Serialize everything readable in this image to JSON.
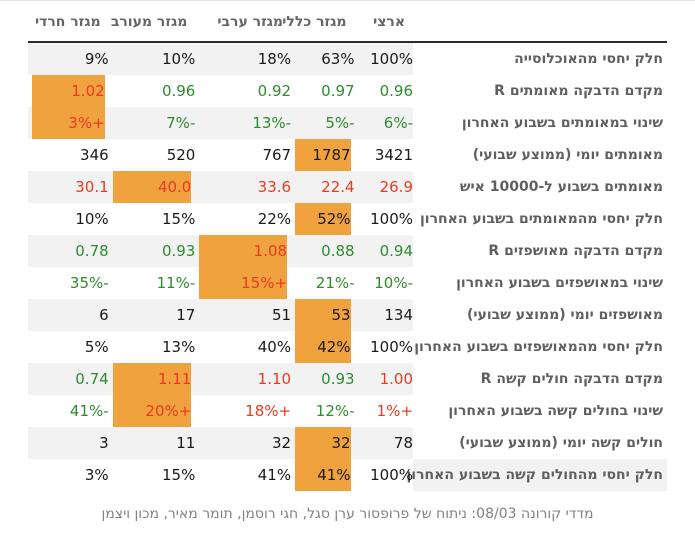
{
  "colors": {
    "highlight": "#f0a23e",
    "positive_green": "#2e8b2e",
    "negative_red": "#e83c22",
    "neutral": "#1a1a1a",
    "stripe": "#f2f2f2",
    "header_text": "#666666",
    "label_text": "#5f5f5f",
    "footer_text": "#828282"
  },
  "chart_data": {
    "type": "table",
    "direction": "rtl",
    "legend_note": "c: dark=neutral black, green=improving, red=worsening; hl: orange highlighted cell",
    "columns": [
      "ארצי",
      "מגזר כללי",
      "מגזר ערבי",
      "מגזר מעורב",
      "מגזר חרדי"
    ],
    "rows": [
      {
        "label": "חלק יחסי מהאוכלוסייה",
        "cells": [
          {
            "t": "100%",
            "c": "dark",
            "hl": false
          },
          {
            "t": "63%",
            "c": "dark",
            "hl": false
          },
          {
            "t": "18%",
            "c": "dark",
            "hl": false
          },
          {
            "t": "10%",
            "c": "dark",
            "hl": false
          },
          {
            "t": "9%",
            "c": "dark",
            "hl": false
          }
        ]
      },
      {
        "label": "מקדם הדבקה מאומתים R",
        "cells": [
          {
            "t": "0.96",
            "c": "green",
            "hl": false
          },
          {
            "t": "0.97",
            "c": "green",
            "hl": false
          },
          {
            "t": "0.92",
            "c": "green",
            "hl": false
          },
          {
            "t": "0.96",
            "c": "green",
            "hl": false
          },
          {
            "t": "1.02",
            "c": "red",
            "hl": true
          }
        ]
      },
      {
        "label": "שינוי במאומתים בשבוע האחרון",
        "cells": [
          {
            "t": "-6%",
            "c": "green",
            "hl": false
          },
          {
            "t": "-5%",
            "c": "green",
            "hl": false
          },
          {
            "t": "-13%",
            "c": "green",
            "hl": false
          },
          {
            "t": "-7%",
            "c": "green",
            "hl": false
          },
          {
            "t": "+3%",
            "c": "red",
            "hl": true
          }
        ]
      },
      {
        "label": "מאומתים יומי (ממוצע שבועי)",
        "cells": [
          {
            "t": "3421",
            "c": "dark",
            "hl": false
          },
          {
            "t": "1787",
            "c": "dark",
            "hl": true
          },
          {
            "t": "767",
            "c": "dark",
            "hl": false
          },
          {
            "t": "520",
            "c": "dark",
            "hl": false
          },
          {
            "t": "346",
            "c": "dark",
            "hl": false
          }
        ]
      },
      {
        "label": "מאומתים בשבוע ל-10000 איש",
        "cells": [
          {
            "t": "26.9",
            "c": "red",
            "hl": false
          },
          {
            "t": "22.4",
            "c": "red",
            "hl": false
          },
          {
            "t": "33.6",
            "c": "red",
            "hl": false
          },
          {
            "t": "40.0",
            "c": "red",
            "hl": true
          },
          {
            "t": "30.1",
            "c": "red",
            "hl": false
          }
        ]
      },
      {
        "label": "חלק יחסי מהמאומתים בשבוע האחרון",
        "cells": [
          {
            "t": "100%",
            "c": "dark",
            "hl": false
          },
          {
            "t": "52%",
            "c": "dark",
            "hl": true
          },
          {
            "t": "22%",
            "c": "dark",
            "hl": false
          },
          {
            "t": "15%",
            "c": "dark",
            "hl": false
          },
          {
            "t": "10%",
            "c": "dark",
            "hl": false
          }
        ]
      },
      {
        "label": "מקדם הדבקה מאושפזים R",
        "cells": [
          {
            "t": "0.94",
            "c": "green",
            "hl": false
          },
          {
            "t": "0.88",
            "c": "green",
            "hl": false
          },
          {
            "t": "1.08",
            "c": "red",
            "hl": true
          },
          {
            "t": "0.93",
            "c": "green",
            "hl": false
          },
          {
            "t": "0.78",
            "c": "green",
            "hl": false
          }
        ]
      },
      {
        "label": "שינוי במאושפזים בשבוע האחרון",
        "cells": [
          {
            "t": "-10%",
            "c": "green",
            "hl": false
          },
          {
            "t": "-21%",
            "c": "green",
            "hl": false
          },
          {
            "t": "+15%",
            "c": "red",
            "hl": true
          },
          {
            "t": "-11%",
            "c": "green",
            "hl": false
          },
          {
            "t": "-35%",
            "c": "green",
            "hl": false
          }
        ]
      },
      {
        "label": "מאושפזים יומי (ממוצע שבועי)",
        "cells": [
          {
            "t": "134",
            "c": "dark",
            "hl": false
          },
          {
            "t": "53",
            "c": "dark",
            "hl": true
          },
          {
            "t": "51",
            "c": "dark",
            "hl": false
          },
          {
            "t": "17",
            "c": "dark",
            "hl": false
          },
          {
            "t": "6",
            "c": "dark",
            "hl": false
          }
        ]
      },
      {
        "label": "חלק יחסי מהמאושפזים בשבוע האחרון",
        "cells": [
          {
            "t": "100%",
            "c": "dark",
            "hl": false
          },
          {
            "t": "42%",
            "c": "dark",
            "hl": true
          },
          {
            "t": "40%",
            "c": "dark",
            "hl": false
          },
          {
            "t": "13%",
            "c": "dark",
            "hl": false
          },
          {
            "t": "5%",
            "c": "dark",
            "hl": false
          }
        ]
      },
      {
        "label": "מקדם הדבקה חולים קשה R",
        "cells": [
          {
            "t": "1.00",
            "c": "red",
            "hl": false
          },
          {
            "t": "0.93",
            "c": "green",
            "hl": false
          },
          {
            "t": "1.10",
            "c": "red",
            "hl": false
          },
          {
            "t": "1.11",
            "c": "red",
            "hl": true
          },
          {
            "t": "0.74",
            "c": "green",
            "hl": false
          }
        ]
      },
      {
        "label": "שינוי בחולים קשה בשבוע האחרון",
        "cells": [
          {
            "t": "+1%",
            "c": "red",
            "hl": false
          },
          {
            "t": "-12%",
            "c": "green",
            "hl": false
          },
          {
            "t": "+18%",
            "c": "red",
            "hl": false
          },
          {
            "t": "+20%",
            "c": "red",
            "hl": true
          },
          {
            "t": "-41%",
            "c": "green",
            "hl": false
          }
        ]
      },
      {
        "label": "חולים קשה יומי (ממוצע שבועי)",
        "cells": [
          {
            "t": "78",
            "c": "dark",
            "hl": false
          },
          {
            "t": "32",
            "c": "dark",
            "hl": true
          },
          {
            "t": "32",
            "c": "dark",
            "hl": false
          },
          {
            "t": "11",
            "c": "dark",
            "hl": false
          },
          {
            "t": "3",
            "c": "dark",
            "hl": false
          }
        ]
      },
      {
        "label": "חלק יחסי מהחולים קשה בשבוע האחרון",
        "cells": [
          {
            "t": "100%",
            "c": "dark",
            "hl": false
          },
          {
            "t": "41%",
            "c": "dark",
            "hl": true
          },
          {
            "t": "41%",
            "c": "dark",
            "hl": false
          },
          {
            "t": "15%",
            "c": "dark",
            "hl": false
          },
          {
            "t": "3%",
            "c": "dark",
            "hl": false
          }
        ]
      }
    ],
    "caption": "מדדי קורונה 08/03: ניתוח של פרופסור ערן סגל, חגי רוסמן, תומר מאיר, מכון ויצמן"
  },
  "footer": {
    "caption": "מדדי קורונה 08/03: ניתוח של פרופסור ערן סגל, חגי רוסמן, תומר מאיר, מכון ויצמן"
  }
}
